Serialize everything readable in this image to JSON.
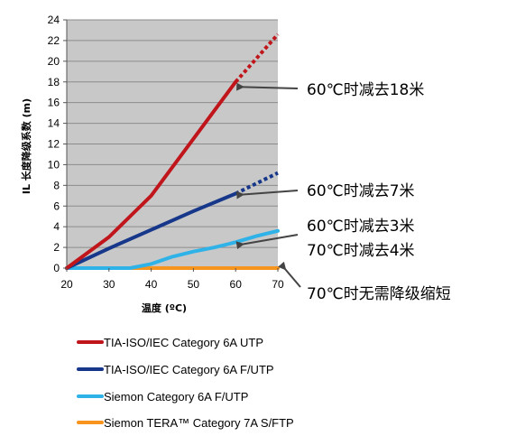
{
  "chart_data": {
    "type": "line",
    "xlabel": "温度 (ºC)",
    "ylabel": "IL 长度降级系数 (m)",
    "xlim": [
      20,
      70
    ],
    "ylim": [
      0,
      24
    ],
    "x_ticks": [
      20,
      30,
      40,
      50,
      60,
      70
    ],
    "y_ticks": [
      0,
      2,
      4,
      6,
      8,
      10,
      12,
      14,
      16,
      18,
      20,
      22,
      24
    ],
    "grid": "horizontal",
    "plot_background": "#c8c8c8",
    "series": [
      {
        "name": "TIA-ISO/IEC Category 6A UTP",
        "color": "#c0161b",
        "solid": [
          [
            20,
            0
          ],
          [
            30,
            3
          ],
          [
            36,
            5.4
          ],
          [
            40,
            7
          ],
          [
            50,
            12.5
          ],
          [
            60,
            18
          ]
        ],
        "dotted": [
          [
            60,
            18
          ],
          [
            70,
            22.6
          ]
        ]
      },
      {
        "name": "TIA-ISO/IEC Category 6A F/UTP",
        "color": "#16378a",
        "solid": [
          [
            20,
            0
          ],
          [
            30,
            1.9
          ],
          [
            40,
            3.7
          ],
          [
            50,
            5.5
          ],
          [
            60,
            7.2
          ]
        ],
        "dotted": [
          [
            60,
            7.2
          ],
          [
            70,
            9.2
          ]
        ]
      },
      {
        "name": "Siemon Category 6A F/UTP",
        "color": "#2eb2e8",
        "solid": [
          [
            20,
            0
          ],
          [
            30,
            0
          ],
          [
            35,
            0
          ],
          [
            40,
            0.4
          ],
          [
            45,
            1.1
          ],
          [
            50,
            1.6
          ],
          [
            55,
            2.0
          ],
          [
            60,
            2.5
          ],
          [
            65,
            3.1
          ],
          [
            70,
            3.6
          ]
        ],
        "dotted": []
      },
      {
        "name": "Siemon TERA™ Category 7A S/FTP",
        "color": "#f7941d",
        "solid": [
          [
            20,
            0
          ],
          [
            70,
            0
          ]
        ],
        "dotted": []
      }
    ],
    "annotations": [
      {
        "lines": [
          "60℃时减去18米"
        ],
        "point": [
          60,
          17.6
        ]
      },
      {
        "lines": [
          "60℃时减去7米"
        ],
        "point": [
          60,
          7.2
        ]
      },
      {
        "lines": [
          "60℃时减去3米",
          "70℃时减去4米"
        ],
        "point": [
          60,
          2.4
        ]
      },
      {
        "lines": [
          "70℃时无需降级缩短"
        ],
        "point": [
          70,
          0
        ]
      }
    ]
  }
}
